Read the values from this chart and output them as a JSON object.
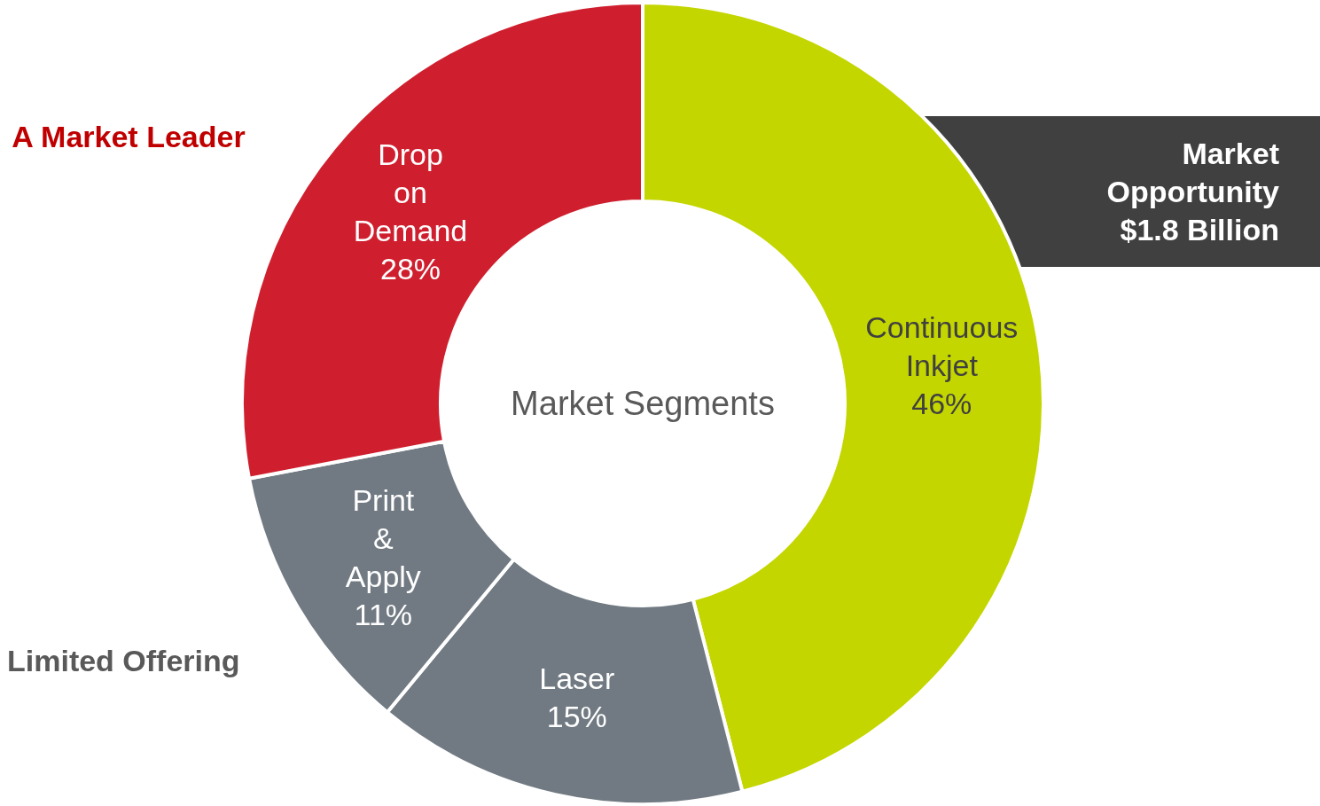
{
  "chart_data": {
    "type": "donut",
    "title": "Market Segments",
    "categories": [
      "Continuous Inkjet",
      "Laser",
      "Print & Apply",
      "Drop on Demand"
    ],
    "values": [
      46,
      15,
      11,
      28
    ],
    "value_labels": [
      "46%",
      "15%",
      "11%",
      "28%"
    ],
    "colors": [
      "#c4d600",
      "#717a82",
      "#717a82",
      "#cf1f2e"
    ],
    "annotations": [
      "A Market Leader",
      "Limited Offering",
      "Market Opportunity $1.8 Billion"
    ]
  }
}
